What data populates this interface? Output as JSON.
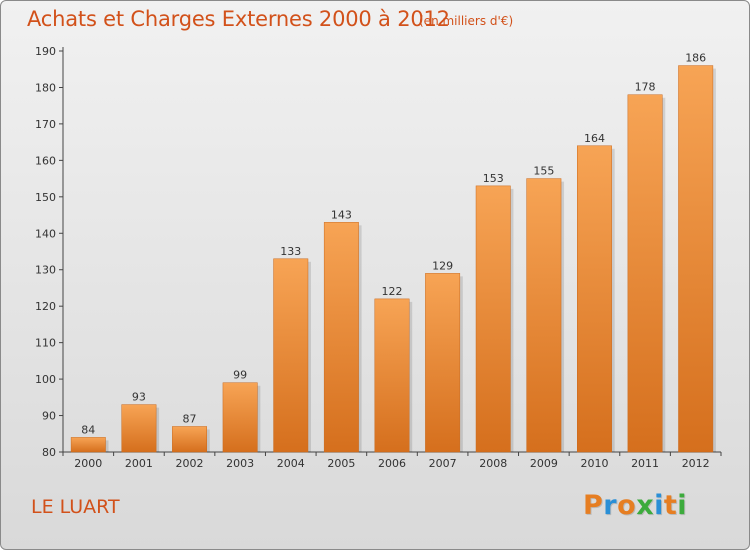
{
  "header": {
    "title": "Achats et Charges Externes 2000 à 2012",
    "subtitle": "(en milliers d'€)"
  },
  "footer": {
    "commune": "LE LUART",
    "logo_text": "Proxiti"
  },
  "colors": {
    "bar_light": "#f7a455",
    "bar_dark": "#d56f1d",
    "title": "#d2511a",
    "logo_letters": [
      "#e67e22",
      "#2a8fd6",
      "#e67e22",
      "#3cab3c",
      "#2a8fd6",
      "#e67e22",
      "#3cab3c"
    ]
  },
  "chart_data": {
    "type": "bar",
    "title": "Achats et Charges Externes 2000 à 2012",
    "subtitle": "(en milliers d'€)",
    "categories": [
      "2000",
      "2001",
      "2002",
      "2003",
      "2004",
      "2005",
      "2006",
      "2007",
      "2008",
      "2009",
      "2010",
      "2011",
      "2012"
    ],
    "values": [
      84,
      93,
      87,
      99,
      133,
      143,
      122,
      129,
      153,
      155,
      164,
      178,
      186
    ],
    "ylim": [
      80,
      190
    ],
    "yticks": [
      80,
      90,
      100,
      110,
      120,
      130,
      140,
      150,
      160,
      170,
      180,
      190
    ],
    "grid": false,
    "xlabel": "",
    "ylabel": ""
  }
}
